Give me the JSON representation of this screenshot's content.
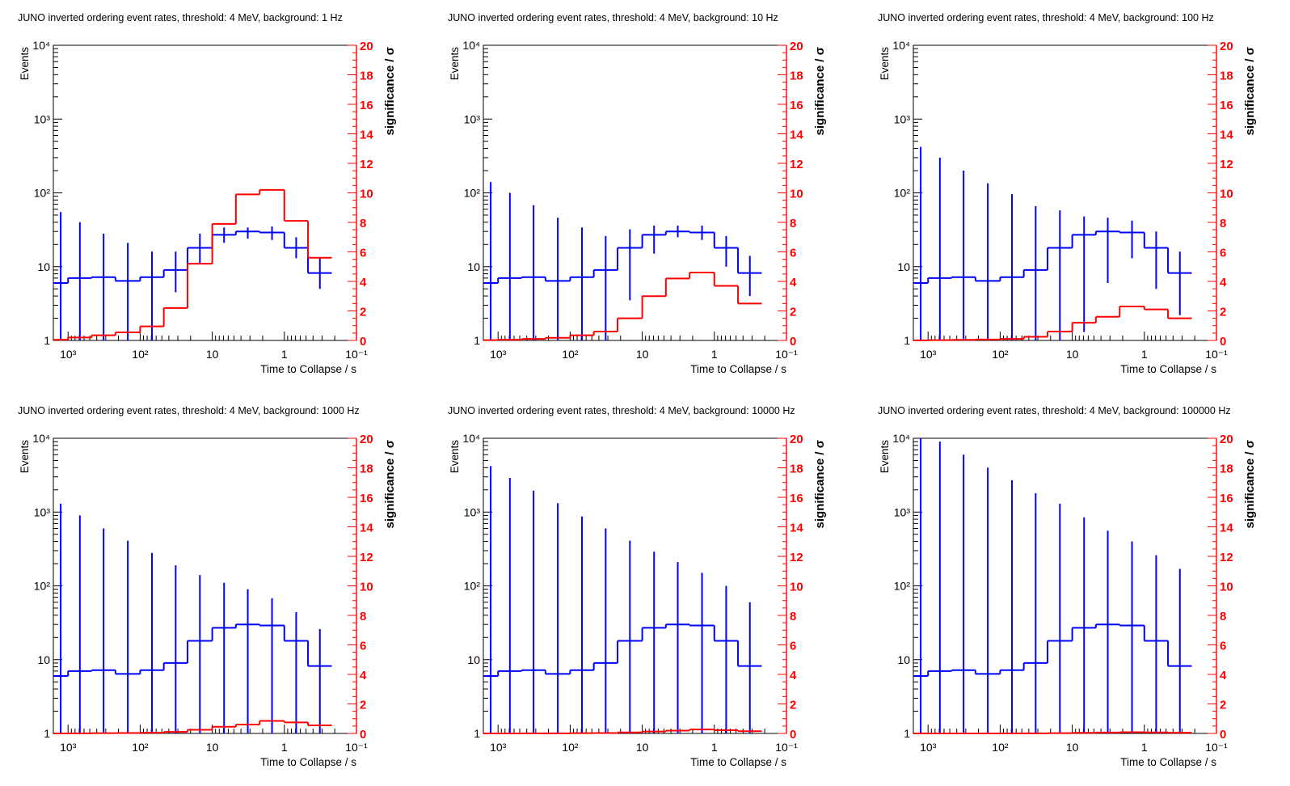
{
  "chart_data": [
    {
      "type": "line",
      "title": "JUNO inverted ordering event rates, threshold: 4 MeV, background: 1 Hz",
      "xlabel": "Time to Collapse / s",
      "ylabel": "Events",
      "y2label": "significance / σ",
      "x_scale": "log",
      "x_reversed": true,
      "xlim": [
        1600,
        0.1
      ],
      "y_scale": "log",
      "ylim": [
        1,
        10000
      ],
      "y2lim": [
        0,
        20
      ],
      "bin_edges": [
        1600,
        1000,
        470,
        220,
        100,
        47,
        22,
        10,
        4.7,
        2.2,
        1,
        0.47,
        0.22,
        0.1
      ],
      "series": [
        {
          "color": "#0000ff",
          "kind": "step-errorbar",
          "values": [
            6,
            7,
            7.2,
            6.4,
            7.2,
            9,
            18,
            27,
            30,
            29,
            18,
            8.2
          ],
          "err_hi": [
            55,
            40,
            28,
            21,
            16,
            16,
            28,
            34,
            34,
            35,
            25,
            13
          ],
          "err_lo": [
            1,
            1,
            1,
            1,
            1,
            4.5,
            11,
            21,
            24,
            23,
            13,
            5
          ]
        },
        {
          "color": "#ff0000",
          "kind": "step",
          "axis": "right",
          "values": [
            0.05,
            0.2,
            0.35,
            0.55,
            0.95,
            2.2,
            5.2,
            7.9,
            9.9,
            10.2,
            8.1,
            5.6
          ]
        }
      ],
      "y_ticks": [
        "1",
        "10",
        "10²",
        "10³",
        "10⁴"
      ],
      "x_ticks": [
        "10³",
        "10²",
        "10",
        "1",
        "10⁻¹"
      ],
      "y2_ticks": [
        "0",
        "2",
        "4",
        "6",
        "8",
        "10",
        "12",
        "14",
        "16",
        "18",
        "20"
      ]
    },
    {
      "type": "line",
      "title": "JUNO inverted ordering event rates, threshold: 4 MeV, background: 10 Hz",
      "xlabel": "Time to Collapse / s",
      "ylabel": "Events",
      "y2label": "significance / σ",
      "x_scale": "log",
      "x_reversed": true,
      "xlim": [
        1600,
        0.1
      ],
      "y_scale": "log",
      "ylim": [
        1,
        10000
      ],
      "y2lim": [
        0,
        20
      ],
      "bin_edges": [
        1600,
        1000,
        470,
        220,
        100,
        47,
        22,
        10,
        4.7,
        2.2,
        1,
        0.47,
        0.22,
        0.1
      ],
      "series": [
        {
          "color": "#0000ff",
          "kind": "step-errorbar",
          "values": [
            6,
            7,
            7.2,
            6.4,
            7.2,
            9,
            18,
            27,
            30,
            29,
            18,
            8.2
          ],
          "err_hi": [
            140,
            100,
            68,
            46,
            34,
            26,
            32,
            36,
            36,
            36,
            26,
            14
          ],
          "err_lo": [
            1,
            1,
            1,
            1,
            1,
            1,
            3.5,
            15,
            25,
            23,
            10,
            4
          ]
        },
        {
          "color": "#ff0000",
          "kind": "step",
          "axis": "right",
          "values": [
            0.02,
            0.05,
            0.1,
            0.18,
            0.35,
            0.6,
            1.5,
            3.0,
            4.2,
            4.6,
            3.7,
            2.5
          ]
        }
      ],
      "y_ticks": [
        "1",
        "10",
        "10²",
        "10³",
        "10⁴"
      ],
      "x_ticks": [
        "10³",
        "10²",
        "10",
        "1",
        "10⁻¹"
      ],
      "y2_ticks": [
        "0",
        "2",
        "4",
        "6",
        "8",
        "10",
        "12",
        "14",
        "16",
        "18",
        "20"
      ]
    },
    {
      "type": "line",
      "title": "JUNO inverted ordering event rates, threshold: 4 MeV, background: 100 Hz",
      "xlabel": "Time to Collapse / s",
      "ylabel": "Events",
      "y2label": "significance / σ",
      "x_scale": "log",
      "x_reversed": true,
      "xlim": [
        1600,
        0.1
      ],
      "y_scale": "log",
      "ylim": [
        1,
        10000
      ],
      "y2lim": [
        0,
        20
      ],
      "bin_edges": [
        1600,
        1000,
        470,
        220,
        100,
        47,
        22,
        10,
        4.7,
        2.2,
        1,
        0.47,
        0.22,
        0.1
      ],
      "series": [
        {
          "color": "#0000ff",
          "kind": "step-errorbar",
          "values": [
            6,
            7,
            7.2,
            6.4,
            7.2,
            9,
            18,
            27,
            30,
            29,
            18,
            8.2
          ],
          "err_hi": [
            420,
            300,
            200,
            135,
            96,
            66,
            58,
            48,
            46,
            42,
            30,
            16
          ],
          "err_lo": [
            1,
            1,
            1,
            1,
            1,
            1,
            1,
            1.3,
            6,
            13,
            5,
            2.2
          ]
        },
        {
          "color": "#ff0000",
          "kind": "step",
          "axis": "right",
          "values": [
            0.01,
            0.02,
            0.04,
            0.06,
            0.1,
            0.25,
            0.6,
            1.2,
            1.6,
            2.3,
            2.1,
            1.5
          ]
        }
      ],
      "y_ticks": [
        "1",
        "10",
        "10²",
        "10³",
        "10⁴"
      ],
      "x_ticks": [
        "10³",
        "10²",
        "10",
        "1",
        "10⁻¹"
      ],
      "y2_ticks": [
        "0",
        "2",
        "4",
        "6",
        "8",
        "10",
        "12",
        "14",
        "16",
        "18",
        "20"
      ]
    },
    {
      "type": "line",
      "title": "JUNO inverted ordering event rates, threshold: 4 MeV, background: 1000 Hz",
      "xlabel": "Time to Collapse / s",
      "ylabel": "Events",
      "y2label": "significance / σ",
      "x_scale": "log",
      "x_reversed": true,
      "xlim": [
        1600,
        0.1
      ],
      "y_scale": "log",
      "ylim": [
        1,
        10000
      ],
      "y2lim": [
        0,
        20
      ],
      "bin_edges": [
        1600,
        1000,
        470,
        220,
        100,
        47,
        22,
        10,
        4.7,
        2.2,
        1,
        0.47,
        0.22,
        0.1
      ],
      "series": [
        {
          "color": "#0000ff",
          "kind": "step-errorbar",
          "values": [
            6,
            7,
            7.2,
            6.4,
            7.2,
            9,
            18,
            27,
            30,
            29,
            18,
            8.2
          ],
          "err_hi": [
            1300,
            900,
            600,
            410,
            280,
            190,
            140,
            110,
            90,
            68,
            44,
            26
          ],
          "err_lo": [
            1,
            1,
            1,
            1,
            1,
            1,
            1,
            1,
            1,
            1,
            1,
            1
          ]
        },
        {
          "color": "#ff0000",
          "kind": "step",
          "axis": "right",
          "values": [
            0.0,
            0.01,
            0.02,
            0.03,
            0.05,
            0.1,
            0.25,
            0.45,
            0.6,
            0.85,
            0.75,
            0.55
          ]
        }
      ],
      "y_ticks": [
        "1",
        "10",
        "10²",
        "10³",
        "10⁴"
      ],
      "x_ticks": [
        "10³",
        "10²",
        "10",
        "1",
        "10⁻¹"
      ],
      "y2_ticks": [
        "0",
        "2",
        "4",
        "6",
        "8",
        "10",
        "12",
        "14",
        "16",
        "18",
        "20"
      ]
    },
    {
      "type": "line",
      "title": "JUNO inverted ordering event rates, threshold: 4 MeV, background: 10000 Hz",
      "xlabel": "Time to Collapse / s",
      "ylabel": "Events",
      "y2label": "significance / σ",
      "x_scale": "log",
      "x_reversed": true,
      "xlim": [
        1600,
        0.1
      ],
      "y_scale": "log",
      "ylim": [
        1,
        10000
      ],
      "y2lim": [
        0,
        20
      ],
      "bin_edges": [
        1600,
        1000,
        470,
        220,
        100,
        47,
        22,
        10,
        4.7,
        2.2,
        1,
        0.47,
        0.22,
        0.1
      ],
      "series": [
        {
          "color": "#0000ff",
          "kind": "step-errorbar",
          "values": [
            6,
            7,
            7.2,
            6.4,
            7.2,
            9,
            18,
            27,
            30,
            29,
            18,
            8.2
          ],
          "err_hi": [
            4200,
            2900,
            1950,
            1320,
            870,
            600,
            410,
            290,
            210,
            150,
            100,
            60
          ],
          "err_lo": [
            1,
            1,
            1,
            1,
            1,
            1,
            1,
            1,
            1,
            1,
            1,
            1
          ]
        },
        {
          "color": "#ff0000",
          "kind": "step",
          "axis": "right",
          "values": [
            0.0,
            0.0,
            0.01,
            0.01,
            0.02,
            0.03,
            0.07,
            0.13,
            0.19,
            0.27,
            0.22,
            0.15
          ]
        }
      ],
      "y_ticks": [
        "1",
        "10",
        "10²",
        "10³",
        "10⁴"
      ],
      "x_ticks": [
        "10³",
        "10²",
        "10",
        "1",
        "10⁻¹"
      ],
      "y2_ticks": [
        "0",
        "2",
        "4",
        "6",
        "8",
        "10",
        "12",
        "14",
        "16",
        "18",
        "20"
      ]
    },
    {
      "type": "line",
      "title": "JUNO inverted ordering event rates, threshold: 4 MeV, background: 100000 Hz",
      "xlabel": "Time to Collapse / s",
      "ylabel": "Events",
      "y2label": "significance / σ",
      "x_scale": "log",
      "x_reversed": true,
      "xlim": [
        1600,
        0.1
      ],
      "y_scale": "log",
      "ylim": [
        1,
        10000
      ],
      "y2lim": [
        0,
        20
      ],
      "bin_edges": [
        1600,
        1000,
        470,
        220,
        100,
        47,
        22,
        10,
        4.7,
        2.2,
        1,
        0.47,
        0.22,
        0.1
      ],
      "series": [
        {
          "color": "#0000ff",
          "kind": "step-errorbar",
          "values": [
            6,
            7,
            7.2,
            6.4,
            7.2,
            9,
            18,
            27,
            30,
            29,
            18,
            8.2
          ],
          "err_hi": [
            10000,
            9000,
            6000,
            4000,
            2700,
            1800,
            1300,
            850,
            560,
            400,
            260,
            170
          ],
          "err_lo": [
            1,
            1,
            1,
            1,
            1,
            1,
            1,
            1,
            1,
            1,
            1,
            1
          ]
        },
        {
          "color": "#ff0000",
          "kind": "step",
          "axis": "right",
          "values": [
            0.0,
            0.0,
            0.0,
            0.0,
            0.01,
            0.01,
            0.02,
            0.04,
            0.06,
            0.08,
            0.07,
            0.05
          ]
        }
      ],
      "y_ticks": [
        "1",
        "10",
        "10²",
        "10³",
        "10⁴"
      ],
      "x_ticks": [
        "10³",
        "10²",
        "10",
        "1",
        "10⁻¹"
      ],
      "y2_ticks": [
        "0",
        "2",
        "4",
        "6",
        "8",
        "10",
        "12",
        "14",
        "16",
        "18",
        "20"
      ]
    }
  ]
}
